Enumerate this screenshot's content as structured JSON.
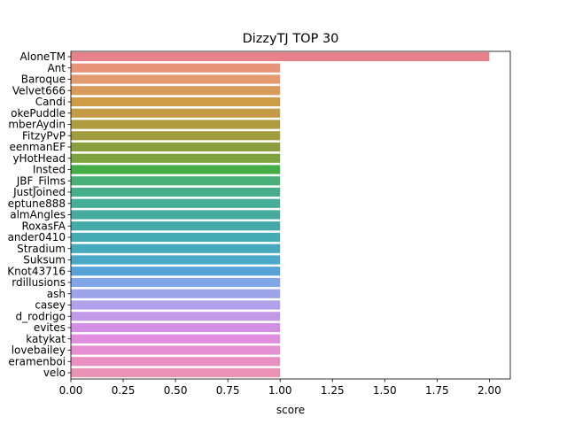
{
  "chart_data": {
    "type": "bar",
    "orientation": "horizontal",
    "title": "DizzyTJ TOP 30",
    "xlabel": "score",
    "ylabel": "",
    "xlim": [
      0,
      2.1
    ],
    "xticks": [
      "0.00",
      "0.25",
      "0.50",
      "0.75",
      "1.00",
      "1.25",
      "1.50",
      "1.75",
      "2.00"
    ],
    "grid": false,
    "legend": "none",
    "categories": [
      "AloneTM",
      "Ant",
      "Baroque",
      "Velvet666",
      "Candi",
      "okePuddle",
      "mberAydin",
      "FitzyPvP",
      "eenmanEF",
      "yHotHead",
      "Insted",
      "JBF_Films",
      "JustJoined",
      "eptune888",
      "almAngles",
      "RoxasFA",
      "ander0410",
      "Stradium",
      "Suksum",
      "Knot43716",
      "rdillusions",
      "ash",
      "casey",
      "d_rodrigo",
      "evites",
      "katykat",
      "lovebailey",
      "eramenboi",
      "velo"
    ],
    "values": [
      2,
      1,
      1,
      1,
      1,
      1,
      1,
      1,
      1,
      1,
      1,
      1,
      1,
      1,
      1,
      1,
      1,
      1,
      1,
      1,
      1,
      1,
      1,
      1,
      1,
      1,
      1,
      1,
      1
    ],
    "colors": [
      "#e8828a",
      "#e8947a",
      "#e29a6e",
      "#d99b5a",
      "#cd9c47",
      "#c39c45",
      "#b09c3f",
      "#a19d3e",
      "#8d9e3e",
      "#7da23e",
      "#44ae44",
      "#4ab07a",
      "#47ae8a",
      "#46ad98",
      "#45ab9f",
      "#44aaa8",
      "#45abb3",
      "#46a9bd",
      "#4aa8c8",
      "#55a2d8",
      "#80a6e8",
      "#9ea4ea",
      "#b1a0ea",
      "#c19ae8",
      "#d38fe4",
      "#e18ee0",
      "#e68fd2",
      "#e890c2",
      "#ea92b5"
    ]
  }
}
